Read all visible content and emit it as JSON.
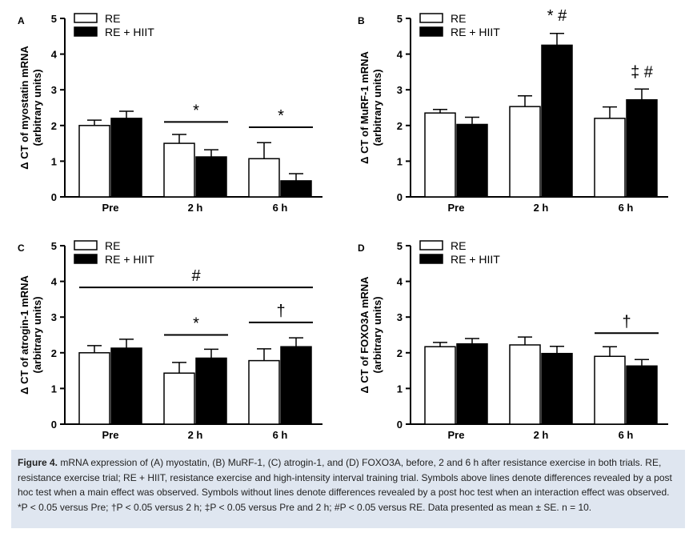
{
  "chart_data": [
    {
      "type": "bar",
      "panel_label": "A",
      "ylabel": "Δ CT of myostatin mRNA",
      "ylabel2": "(arbitrary units)",
      "categories": [
        "Pre",
        "2 h",
        "6 h"
      ],
      "ylim": [
        0,
        5
      ],
      "yticks": [
        "0",
        "1",
        "2",
        "3",
        "4",
        "5"
      ],
      "legend": [
        "RE",
        "RE + HIIT"
      ],
      "legend_position": "top-left",
      "series": [
        {
          "name": "RE",
          "values": [
            2.0,
            1.5,
            1.07
          ],
          "errors": [
            0.15,
            0.25,
            0.45
          ],
          "fill": "#ffffff"
        },
        {
          "name": "RE + HIIT",
          "values": [
            2.2,
            1.12,
            0.45
          ],
          "errors": [
            0.2,
            0.2,
            0.2
          ],
          "fill": "#000000"
        }
      ],
      "annotations": [
        {
          "text": "*",
          "line": true,
          "cat_from": 1,
          "cat_to": 1,
          "at": 2.1
        },
        {
          "text": "*",
          "line": true,
          "cat_from": 2,
          "cat_to": 2,
          "at": 1.95
        }
      ]
    },
    {
      "type": "bar",
      "panel_label": "B",
      "ylabel": "Δ CT of MuRF-1 mRNA",
      "ylabel2": "(arbitrary units)",
      "categories": [
        "Pre",
        "2 h",
        "6 h"
      ],
      "ylim": [
        0,
        5
      ],
      "yticks": [
        "0",
        "1",
        "2",
        "3",
        "4",
        "5"
      ],
      "legend": [
        "RE",
        "RE + HIIT"
      ],
      "legend_position": "top-left",
      "series": [
        {
          "name": "RE",
          "values": [
            2.35,
            2.53,
            2.2
          ],
          "errors": [
            0.1,
            0.3,
            0.32
          ],
          "fill": "#ffffff"
        },
        {
          "name": "RE + HIIT",
          "values": [
            2.03,
            4.25,
            2.72
          ],
          "errors": [
            0.2,
            0.33,
            0.3
          ],
          "fill": "#000000"
        }
      ],
      "annotations": [
        {
          "text": "* #",
          "line": false,
          "cat": 1,
          "at": 4.93
        },
        {
          "text": "‡ #",
          "line": false,
          "cat": 2,
          "at": 3.35
        }
      ]
    },
    {
      "type": "bar",
      "panel_label": "C",
      "ylabel": "Δ CT of atrogin-1 mRNA",
      "ylabel2": "(arbitrary units)",
      "categories": [
        "Pre",
        "2 h",
        "6 h"
      ],
      "ylim": [
        0,
        5
      ],
      "yticks": [
        "0",
        "1",
        "2",
        "3",
        "4",
        "5"
      ],
      "legend": [
        "RE",
        "RE + HIIT"
      ],
      "legend_position": "top-left",
      "series": [
        {
          "name": "RE",
          "values": [
            2.0,
            1.43,
            1.78
          ],
          "errors": [
            0.2,
            0.3,
            0.33
          ],
          "fill": "#ffffff"
        },
        {
          "name": "RE + HIIT",
          "values": [
            2.13,
            1.85,
            2.17
          ],
          "errors": [
            0.25,
            0.25,
            0.25
          ],
          "fill": "#000000"
        }
      ],
      "annotations": [
        {
          "text": "#",
          "line": true,
          "cat_from": 0,
          "cat_to": 2,
          "at": 3.83
        },
        {
          "text": "*",
          "line": true,
          "cat_from": 1,
          "cat_to": 1,
          "at": 2.5
        },
        {
          "text": "†",
          "line": true,
          "cat_from": 2,
          "cat_to": 2,
          "at": 2.85
        }
      ]
    },
    {
      "type": "bar",
      "panel_label": "D",
      "ylabel": "Δ CT of FOXO3A mRNA",
      "ylabel2": "(arbitrary units)",
      "categories": [
        "Pre",
        "2 h",
        "6 h"
      ],
      "ylim": [
        0,
        5
      ],
      "yticks": [
        "0",
        "1",
        "2",
        "3",
        "4",
        "5"
      ],
      "legend": [
        "RE",
        "RE + HIIT"
      ],
      "legend_position": "top-left",
      "series": [
        {
          "name": "RE",
          "values": [
            2.17,
            2.22,
            1.9
          ],
          "errors": [
            0.12,
            0.22,
            0.27
          ],
          "fill": "#ffffff"
        },
        {
          "name": "RE + HIIT",
          "values": [
            2.25,
            1.98,
            1.63
          ],
          "errors": [
            0.15,
            0.2,
            0.18
          ],
          "fill": "#000000"
        }
      ],
      "annotations": [
        {
          "text": "†",
          "line": true,
          "cat_from": 2,
          "cat_to": 2,
          "at": 2.55
        }
      ]
    }
  ],
  "caption": {
    "label": "Figure 4.",
    "text": "mRNA expression of (A) myostatin, (B) MuRF-1, (C) atrogin-1, and (D) FOXO3A, before, 2 and 6 h after resistance exercise in both trials. RE, resistance exercise trial; RE + HIIT, resistance exercise and high-intensity interval training trial. Symbols above lines denote differences revealed by a post hoc test when a main effect was observed. Symbols without lines denote differences revealed by a post hoc test when an interaction effect was observed. *P < 0.05 versus Pre; †P < 0.05 versus 2 h; ‡P < 0.05 versus Pre and 2 h; #P < 0.05 versus RE. Data presented as mean ± SE. n = 10."
  }
}
